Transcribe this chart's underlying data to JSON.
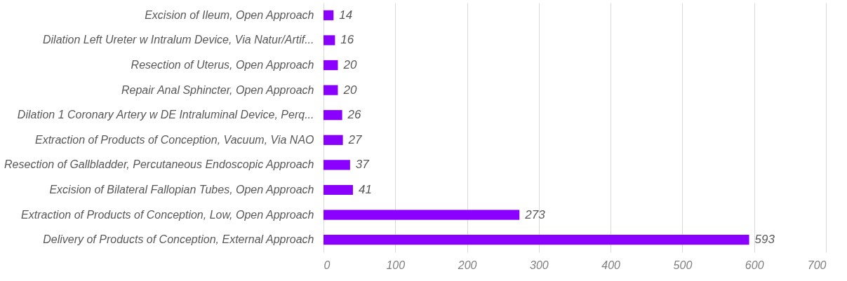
{
  "chart_data": {
    "type": "bar",
    "orientation": "horizontal",
    "categories": [
      "Excision of Ileum, Open Approach",
      "Dilation Left Ureter w Intralum Device, Via Natur/Artif...",
      "Resection of Uterus, Open Approach",
      "Repair Anal Sphincter, Open Approach",
      "Dilation 1 Coronary Artery w DE Intraluminal Device, Perq...",
      "Extraction of Products of Conception, Vacuum, Via NAO",
      "Resection of Gallbladder, Percutaneous Endoscopic Approach",
      "Excision of Bilateral Fallopian Tubes, Open Approach",
      "Extraction of Products of Conception, Low, Open Approach",
      "Delivery of Products of Conception, External Approach"
    ],
    "values": [
      14,
      16,
      20,
      20,
      26,
      27,
      37,
      41,
      273,
      593
    ],
    "color": "#8a00ff",
    "xlim": [
      0,
      700
    ],
    "xticks": [
      0,
      100,
      200,
      300,
      400,
      500,
      600,
      700
    ],
    "grid": "x",
    "data_labels": true
  }
}
